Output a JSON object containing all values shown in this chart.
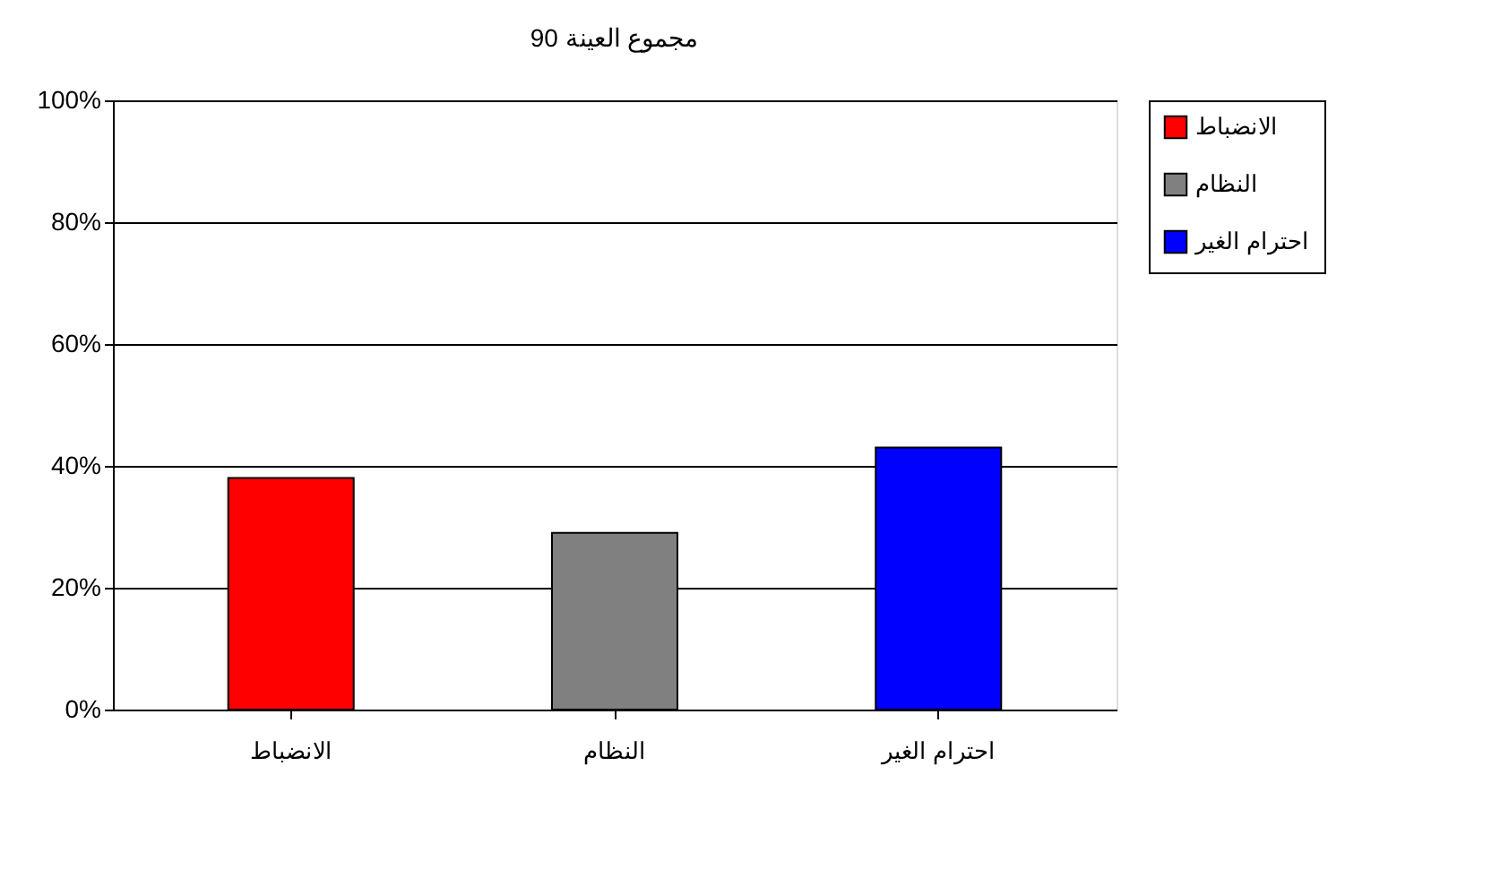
{
  "chart_data": {
    "type": "bar",
    "title": "مجموع العينة 90",
    "categories": [
      "الانضباط",
      "النظام",
      "احترام الغير"
    ],
    "series": [
      {
        "name": "الانضباط",
        "color": "#ff0000",
        "values": [
          38,
          null,
          null
        ]
      },
      {
        "name": "النظام",
        "color": "#808080",
        "values": [
          null,
          29,
          null
        ]
      },
      {
        "name": "احترام الغير",
        "color": "#0000ff",
        "values": [
          null,
          null,
          43
        ]
      }
    ],
    "ylim": [
      0,
      100
    ],
    "yticks": [
      {
        "value": 0,
        "label": "0%"
      },
      {
        "value": 20,
        "label": "20%"
      },
      {
        "value": 40,
        "label": "40%"
      },
      {
        "value": 60,
        "label": "60%"
      },
      {
        "value": 80,
        "label": "80%"
      },
      {
        "value": 100,
        "label": "100%"
      }
    ],
    "grid": "y",
    "legend": "right"
  }
}
